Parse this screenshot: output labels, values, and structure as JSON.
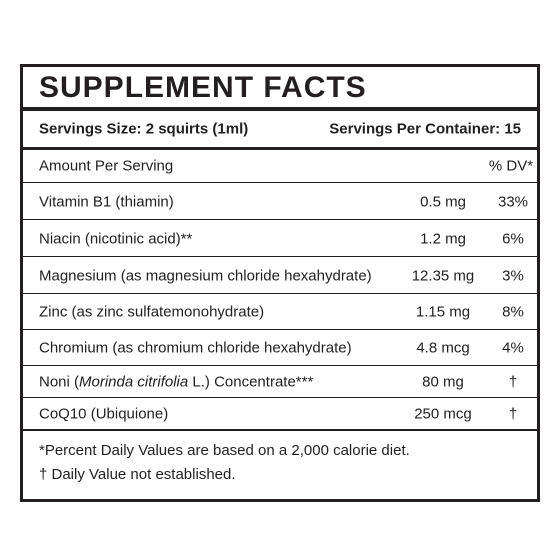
{
  "title": "SUPPLEMENT FACTS",
  "servings": {
    "size": "Servings Size: 2 squirts (1ml)",
    "per_container": "Servings Per Container: 15"
  },
  "header": {
    "amount": "Amount Per Serving",
    "dv": "% DV*"
  },
  "rows": [
    {
      "name": [
        "Vitamin B1 (thiamin)"
      ],
      "amount": "0.5 mg",
      "dv": "33%"
    },
    {
      "name": [
        "Niacin (nicotinic acid)**"
      ],
      "amount": "1.2 mg",
      "dv": "6%"
    },
    {
      "name": [
        "Magnesium (as magnesium chloride hexahydrate)"
      ],
      "amount": "12.35 mg",
      "dv": "3%"
    },
    {
      "name": [
        "Zinc (as zinc sulfatemonohydrate)"
      ],
      "amount": "1.15 mg",
      "dv": "8%"
    },
    {
      "name": [
        "Chromium (as chromium chloride hexahydrate)"
      ],
      "amount": "4.8 mcg",
      "dv": "4%"
    },
    {
      "name": [
        "Noni (",
        "Morinda citrifolia",
        " L.) Concentrate***"
      ],
      "amount": "80 mg",
      "dv": "†"
    },
    {
      "name": [
        "CoQ10 (Ubiquione)"
      ],
      "amount": "250 mcg",
      "dv": "†"
    }
  ],
  "footnotes": [
    "*Percent Daily Values are based on a 2,000 calorie diet.",
    "† Daily Value not established."
  ]
}
